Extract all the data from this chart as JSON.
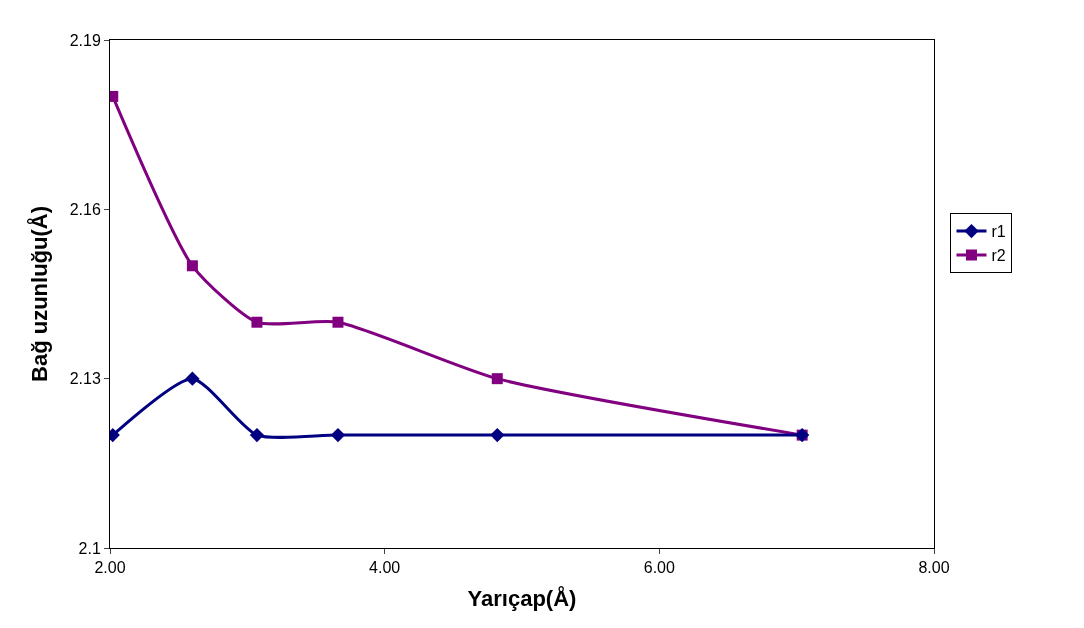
{
  "chart_data": {
    "type": "line",
    "xlabel": "Yarıçap(Å)",
    "ylabel": "Bağ uzunluğu(Å)",
    "x": [
      2.02,
      2.6,
      3.07,
      3.66,
      4.82,
      7.04
    ],
    "series": [
      {
        "name": "r1",
        "color": "#000080",
        "values": [
          2.12,
          2.13,
          2.12,
          2.12,
          2.12,
          2.12
        ],
        "marker": "diamond"
      },
      {
        "name": "r2",
        "color": "#800080",
        "values": [
          2.18,
          2.15,
          2.14,
          2.14,
          2.13,
          2.12
        ],
        "marker": "square"
      }
    ],
    "xlim": [
      2,
      8
    ],
    "xticks": [
      {
        "value": 2,
        "label": "2.00"
      },
      {
        "value": 4,
        "label": "4.00"
      },
      {
        "value": 6,
        "label": "6.00"
      },
      {
        "value": 8,
        "label": "8.00"
      }
    ],
    "ylim": [
      2.1,
      2.19
    ],
    "yticks": [
      2.1,
      2.13,
      2.16,
      2.19
    ],
    "legend": "right",
    "line_style": "solid"
  }
}
